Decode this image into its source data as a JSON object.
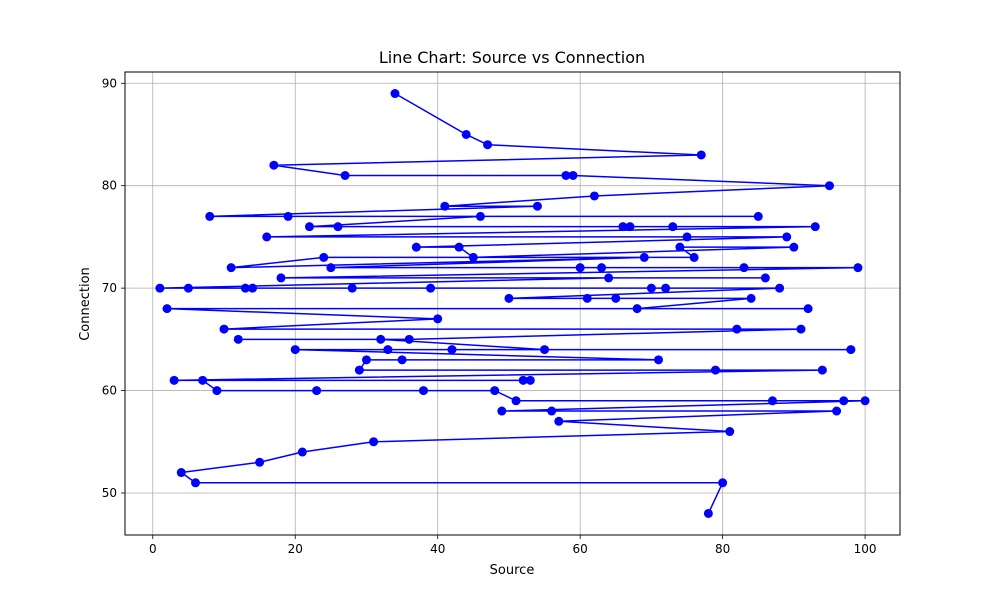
{
  "chart_data": {
    "type": "line",
    "title": "Line Chart: Source vs Connection",
    "xlabel": "Source",
    "ylabel": "Connection",
    "xlim": [
      -3.9,
      104.9
    ],
    "ylim": [
      45.9,
      91.1
    ],
    "x_ticks": [
      0,
      20,
      40,
      60,
      80,
      100
    ],
    "y_ticks": [
      50,
      60,
      70,
      80,
      90
    ],
    "grid": true,
    "colors": {
      "line": "#0000ff",
      "marker": "#0000ff",
      "grid": "#b0b0b0",
      "axes": "#000000"
    },
    "series": [
      {
        "x": [
          34,
          44,
          47,
          77,
          17,
          27,
          58,
          59,
          95,
          62,
          41,
          54,
          8,
          19,
          85,
          46,
          22,
          26,
          66,
          67,
          73,
          93,
          16,
          75,
          89,
          37,
          43,
          45,
          90,
          74,
          76,
          24,
          11,
          69,
          25,
          60,
          63,
          83,
          99,
          18,
          86,
          64,
          1,
          5,
          28,
          13,
          14,
          39,
          70,
          72,
          88,
          50,
          61,
          65,
          84,
          68,
          92,
          2,
          40,
          10,
          82,
          91,
          36,
          12,
          32,
          55,
          33,
          42,
          98,
          20,
          71,
          35,
          30,
          29,
          79,
          94,
          3,
          52,
          53,
          7,
          9,
          23,
          38,
          48,
          51,
          87,
          97,
          100,
          49,
          56,
          96,
          57,
          81,
          31,
          21,
          15,
          4,
          6,
          80,
          78
        ],
        "y": [
          89,
          85,
          84,
          83,
          82,
          81,
          81,
          81,
          80,
          79,
          78,
          78,
          77,
          77,
          77,
          77,
          76,
          76,
          76,
          76,
          76,
          76,
          75,
          75,
          75,
          74,
          74,
          73,
          74,
          74,
          73,
          73,
          72,
          73,
          72,
          72,
          72,
          72,
          72,
          71,
          71,
          71,
          70,
          70,
          70,
          70,
          70,
          70,
          70,
          70,
          70,
          69,
          69,
          69,
          69,
          68,
          68,
          68,
          67,
          66,
          66,
          66,
          65,
          65,
          65,
          64,
          64,
          64,
          64,
          64,
          63,
          63,
          63,
          62,
          62,
          62,
          61,
          61,
          61,
          61,
          60,
          60,
          60,
          60,
          59,
          59,
          59,
          59,
          58,
          58,
          58,
          57,
          56,
          55,
          54,
          53,
          52,
          51,
          51,
          48
        ]
      }
    ]
  }
}
